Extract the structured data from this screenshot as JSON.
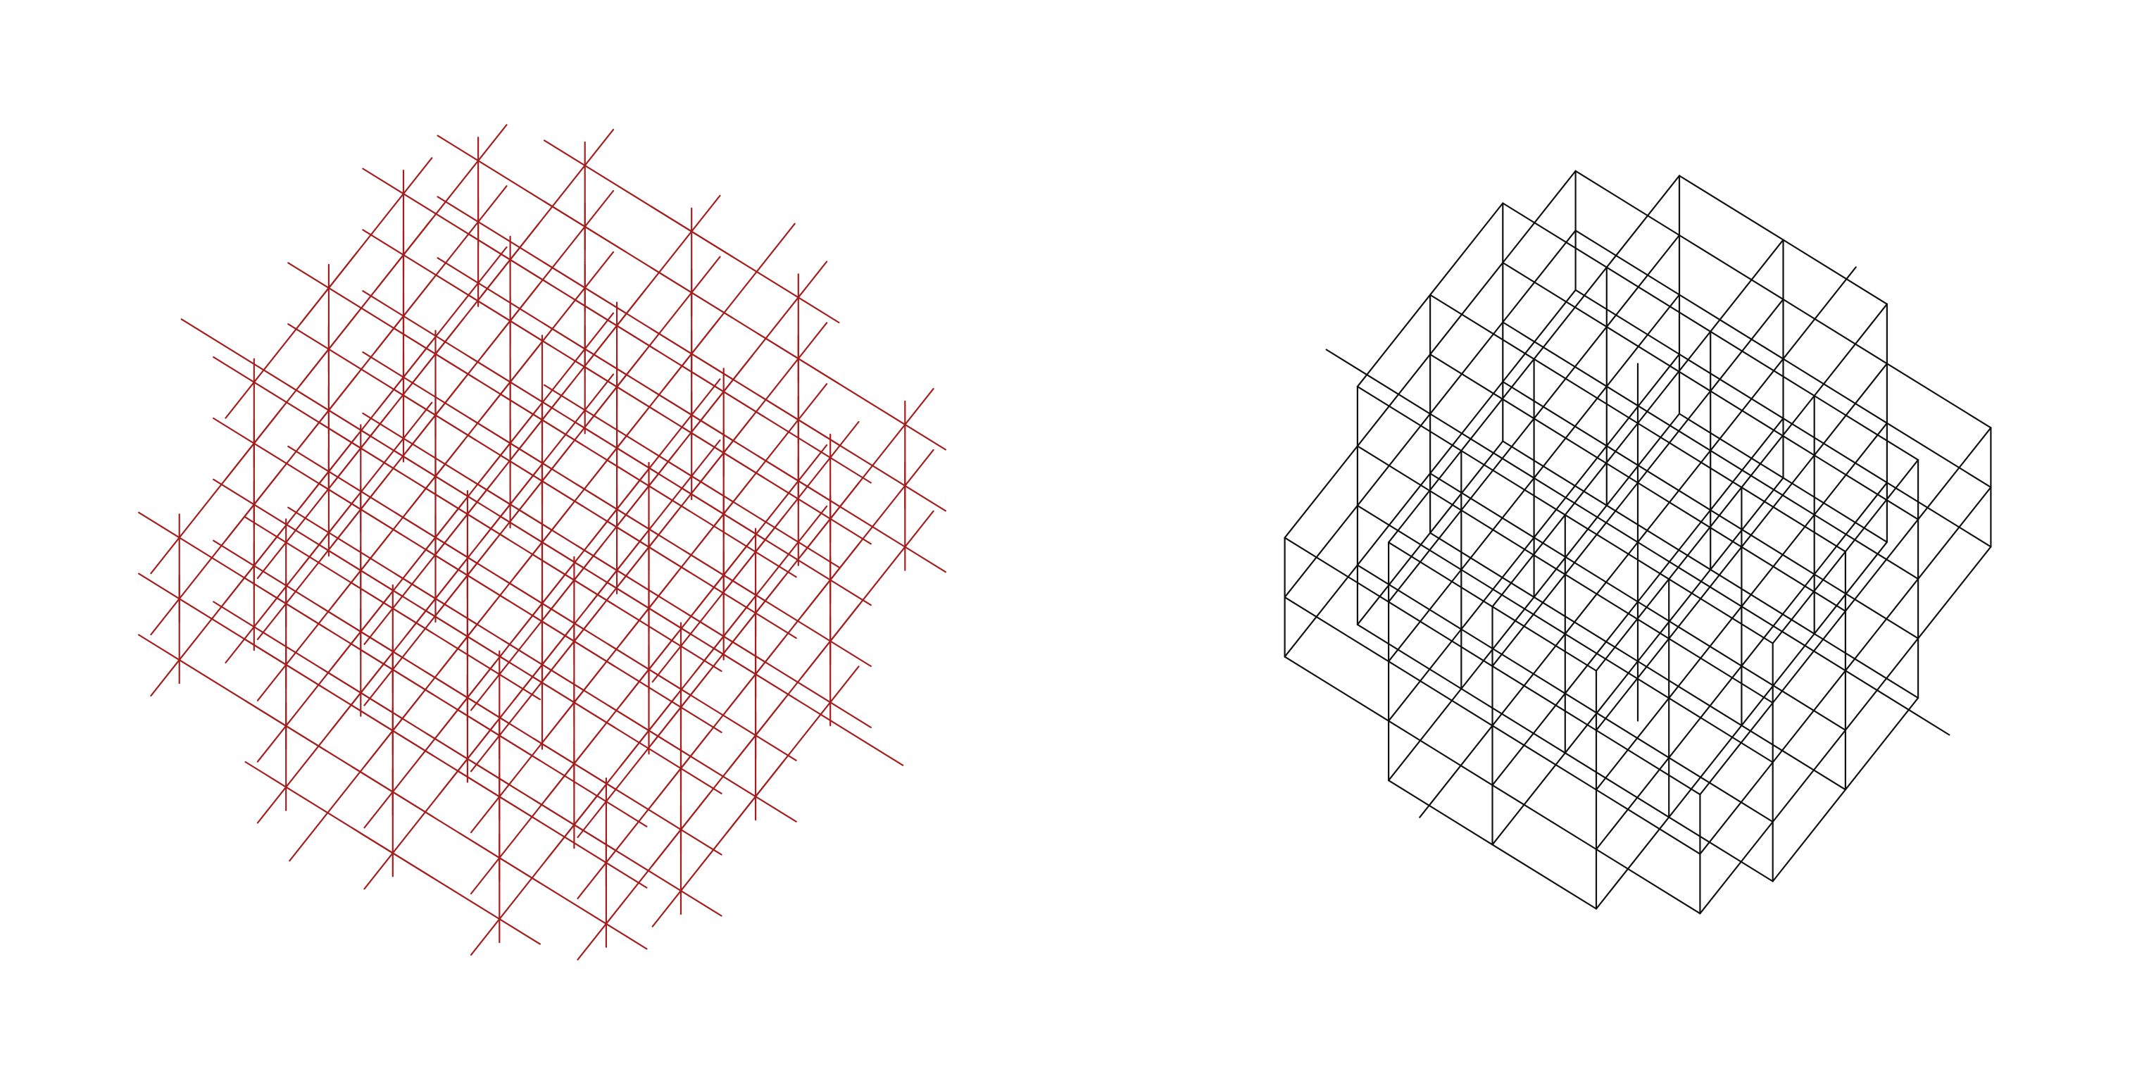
{
  "figures": [
    {
      "id": "left",
      "description_color": "#a31f1f",
      "style": "open-ended crossed segments (lattice with overshooting edges)",
      "rotation_deg": 35,
      "tilt_deg": 62,
      "lattice_extent": 3,
      "edge_overshoot": 0.38
    },
    {
      "id": "right",
      "description_color": "#111111",
      "style": "closed wireframe cube lattice",
      "rotation_deg": 35,
      "tilt_deg": 62,
      "lattice_extent": 3,
      "edge_overshoot": 0.0
    }
  ],
  "colors": {
    "background": "#ffffff",
    "left_lines": "#a31f1f",
    "right_lines": "#111111"
  }
}
